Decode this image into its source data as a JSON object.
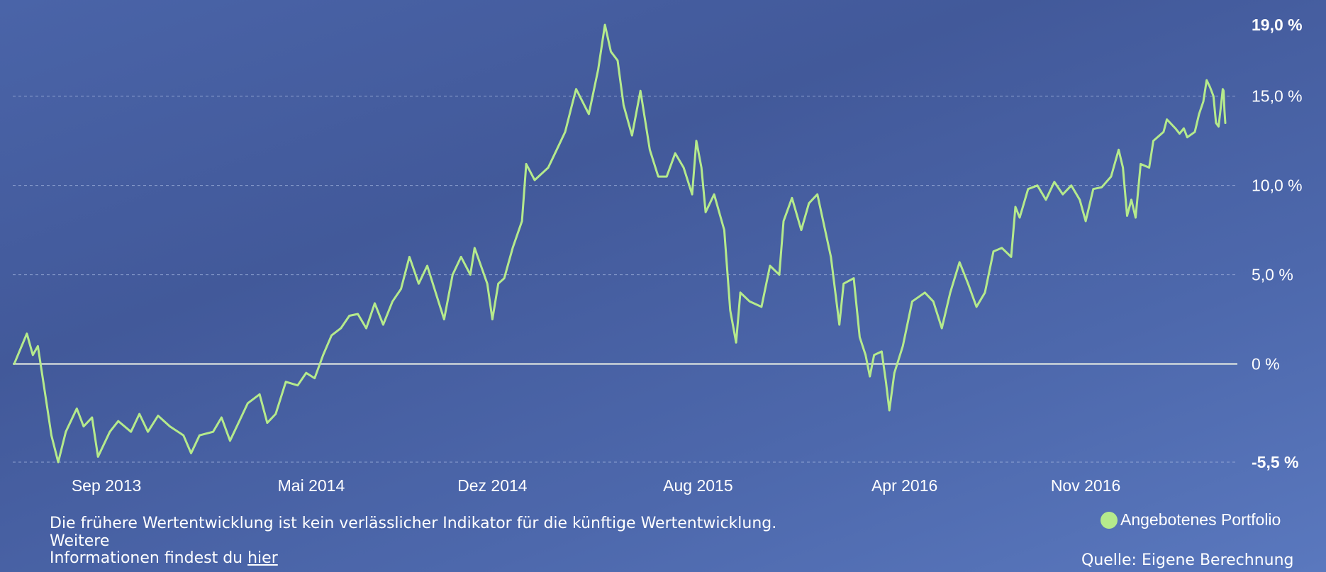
{
  "colors": {
    "line": "#b5ea8c",
    "zero_line": "#f4f7e8",
    "grid": "#9fb1dc",
    "text": "#ffffff"
  },
  "chart_data": {
    "type": "line",
    "title": "",
    "xlabel": "",
    "ylabel": "",
    "x_range": [
      "2013-05-15",
      "2017-04-15"
    ],
    "ylim": [
      -5.5,
      19.0
    ],
    "grid": true,
    "legend_position": "bottom-right",
    "y_ticks": [
      {
        "value": 19.0,
        "label": "19,0 %",
        "bold": true
      },
      {
        "value": 15.0,
        "label": "15,0 %",
        "bold": false
      },
      {
        "value": 10.0,
        "label": "10,0 %",
        "bold": false
      },
      {
        "value": 5.0,
        "label": "5,0 %",
        "bold": false
      },
      {
        "value": 0,
        "label": "0 %",
        "bold": false
      },
      {
        "value": -5.5,
        "label": "-5,5 %",
        "bold": true
      }
    ],
    "x_ticks": [
      {
        "date": "2013-09-01",
        "label": "Sep 2013"
      },
      {
        "date": "2014-05-01",
        "label": "Mai 2014"
      },
      {
        "date": "2014-12-01",
        "label": "Dez 2014"
      },
      {
        "date": "2015-08-01",
        "label": "Aug 2015"
      },
      {
        "date": "2016-04-01",
        "label": "Apr 2016"
      },
      {
        "date": "2016-11-01",
        "label": "Nov 2016"
      }
    ],
    "series": [
      {
        "name": "Angebotenes Portfolio",
        "points": [
          [
            "2013-05-15",
            0.0
          ],
          [
            "2013-05-22",
            0.8
          ],
          [
            "2013-05-30",
            1.7
          ],
          [
            "2013-06-06",
            0.5
          ],
          [
            "2013-06-12",
            1.0
          ],
          [
            "2013-06-20",
            -1.5
          ],
          [
            "2013-06-28",
            -4.0
          ],
          [
            "2013-07-06",
            -5.5
          ],
          [
            "2013-07-15",
            -3.8
          ],
          [
            "2013-07-28",
            -2.5
          ],
          [
            "2013-08-05",
            -3.5
          ],
          [
            "2013-08-15",
            -3.0
          ],
          [
            "2013-08-22",
            -5.2
          ],
          [
            "2013-09-05",
            -3.8
          ],
          [
            "2013-09-15",
            -3.2
          ],
          [
            "2013-09-30",
            -3.8
          ],
          [
            "2013-10-10",
            -2.8
          ],
          [
            "2013-10-20",
            -3.8
          ],
          [
            "2013-11-01",
            -2.9
          ],
          [
            "2013-11-15",
            -3.5
          ],
          [
            "2013-12-01",
            -4.0
          ],
          [
            "2013-12-10",
            -5.0
          ],
          [
            "2013-12-20",
            -4.0
          ],
          [
            "2014-01-05",
            -3.8
          ],
          [
            "2014-01-15",
            -3.0
          ],
          [
            "2014-01-25",
            -4.3
          ],
          [
            "2014-02-05",
            -3.2
          ],
          [
            "2014-02-15",
            -2.2
          ],
          [
            "2014-03-01",
            -1.7
          ],
          [
            "2014-03-10",
            -3.3
          ],
          [
            "2014-03-20",
            -2.8
          ],
          [
            "2014-04-01",
            -1.0
          ],
          [
            "2014-04-15",
            -1.2
          ],
          [
            "2014-04-25",
            -0.5
          ],
          [
            "2014-05-05",
            -0.8
          ],
          [
            "2014-05-15",
            0.5
          ],
          [
            "2014-05-25",
            1.6
          ],
          [
            "2014-06-05",
            2.0
          ],
          [
            "2014-06-15",
            2.7
          ],
          [
            "2014-06-25",
            2.8
          ],
          [
            "2014-07-05",
            2.0
          ],
          [
            "2014-07-15",
            3.4
          ],
          [
            "2014-07-25",
            2.2
          ],
          [
            "2014-08-05",
            3.5
          ],
          [
            "2014-08-15",
            4.2
          ],
          [
            "2014-08-25",
            6.0
          ],
          [
            "2014-09-05",
            4.5
          ],
          [
            "2014-09-15",
            5.5
          ],
          [
            "2014-09-25",
            4.0
          ],
          [
            "2014-10-05",
            2.5
          ],
          [
            "2014-10-15",
            5.0
          ],
          [
            "2014-10-25",
            6.0
          ],
          [
            "2014-11-05",
            5.0
          ],
          [
            "2014-11-10",
            6.5
          ],
          [
            "2014-11-25",
            4.5
          ],
          [
            "2014-12-01",
            2.5
          ],
          [
            "2014-12-08",
            4.5
          ],
          [
            "2014-12-15",
            4.8
          ],
          [
            "2014-12-25",
            6.5
          ],
          [
            "2015-01-05",
            8.0
          ],
          [
            "2015-01-10",
            11.2
          ],
          [
            "2015-01-20",
            10.3
          ],
          [
            "2015-02-05",
            11.0
          ],
          [
            "2015-02-15",
            12.0
          ],
          [
            "2015-02-25",
            13.0
          ],
          [
            "2015-03-05",
            14.5
          ],
          [
            "2015-03-10",
            15.4
          ],
          [
            "2015-03-25",
            14.0
          ],
          [
            "2015-04-05",
            16.5
          ],
          [
            "2015-04-13",
            19.0
          ],
          [
            "2015-04-20",
            17.5
          ],
          [
            "2015-04-28",
            17.0
          ],
          [
            "2015-05-05",
            14.5
          ],
          [
            "2015-05-15",
            12.8
          ],
          [
            "2015-05-25",
            15.3
          ],
          [
            "2015-06-05",
            12.0
          ],
          [
            "2015-06-15",
            10.5
          ],
          [
            "2015-06-25",
            10.5
          ],
          [
            "2015-07-05",
            11.8
          ],
          [
            "2015-07-15",
            11.0
          ],
          [
            "2015-07-25",
            9.5
          ],
          [
            "2015-07-30",
            12.5
          ],
          [
            "2015-08-05",
            11.0
          ],
          [
            "2015-08-10",
            8.5
          ],
          [
            "2015-08-20",
            9.5
          ],
          [
            "2015-09-01",
            7.5
          ],
          [
            "2015-09-08",
            3.0
          ],
          [
            "2015-09-15",
            1.2
          ],
          [
            "2015-09-20",
            4.0
          ],
          [
            "2015-10-01",
            3.5
          ],
          [
            "2015-10-15",
            3.2
          ],
          [
            "2015-10-25",
            5.5
          ],
          [
            "2015-11-05",
            5.0
          ],
          [
            "2015-11-10",
            8.0
          ],
          [
            "2015-11-20",
            9.3
          ],
          [
            "2015-12-01",
            7.5
          ],
          [
            "2015-12-10",
            9.0
          ],
          [
            "2015-12-20",
            9.5
          ],
          [
            "2016-01-05",
            6.0
          ],
          [
            "2016-01-15",
            2.2
          ],
          [
            "2016-01-20",
            4.5
          ],
          [
            "2016-02-01",
            4.8
          ],
          [
            "2016-02-08",
            1.5
          ],
          [
            "2016-02-15",
            0.5
          ],
          [
            "2016-02-20",
            -0.7
          ],
          [
            "2016-02-25",
            0.5
          ],
          [
            "2016-03-05",
            0.7
          ],
          [
            "2016-03-10",
            -1.0
          ],
          [
            "2016-03-14",
            -2.6
          ],
          [
            "2016-03-20",
            -0.5
          ],
          [
            "2016-03-30",
            1.0
          ],
          [
            "2016-04-10",
            3.5
          ],
          [
            "2016-04-25",
            4.0
          ],
          [
            "2016-05-05",
            3.5
          ],
          [
            "2016-05-15",
            2.0
          ],
          [
            "2016-05-25",
            4.0
          ],
          [
            "2016-06-05",
            5.7
          ],
          [
            "2016-06-15",
            4.5
          ],
          [
            "2016-06-25",
            3.2
          ],
          [
            "2016-07-05",
            4.0
          ],
          [
            "2016-07-15",
            6.3
          ],
          [
            "2016-07-25",
            6.5
          ],
          [
            "2016-08-05",
            6.0
          ],
          [
            "2016-08-10",
            8.8
          ],
          [
            "2016-08-15",
            8.2
          ],
          [
            "2016-08-25",
            9.8
          ],
          [
            "2016-09-05",
            10.0
          ],
          [
            "2016-09-15",
            9.2
          ],
          [
            "2016-09-25",
            10.2
          ],
          [
            "2016-10-05",
            9.5
          ],
          [
            "2016-10-15",
            10.0
          ],
          [
            "2016-10-25",
            9.2
          ],
          [
            "2016-11-01",
            8.0
          ],
          [
            "2016-11-10",
            9.8
          ],
          [
            "2016-11-20",
            9.9
          ],
          [
            "2016-12-01",
            10.5
          ],
          [
            "2016-12-10",
            12.0
          ],
          [
            "2016-12-15",
            11.0
          ],
          [
            "2016-12-20",
            8.3
          ],
          [
            "2016-12-25",
            9.2
          ],
          [
            "2016-12-30",
            8.2
          ],
          [
            "2017-01-05",
            11.2
          ],
          [
            "2017-01-15",
            11.0
          ],
          [
            "2017-01-20",
            12.5
          ],
          [
            "2017-02-01",
            13.0
          ],
          [
            "2017-02-05",
            13.7
          ],
          [
            "2017-02-15",
            13.2
          ],
          [
            "2017-02-20",
            12.9
          ],
          [
            "2017-02-25",
            13.2
          ],
          [
            "2017-03-01",
            12.7
          ],
          [
            "2017-03-10",
            13.0
          ],
          [
            "2017-03-15",
            14.0
          ],
          [
            "2017-03-20",
            14.7
          ],
          [
            "2017-03-24",
            15.9
          ],
          [
            "2017-03-28",
            15.5
          ],
          [
            "2017-04-01",
            15.0
          ],
          [
            "2017-04-04",
            13.5
          ],
          [
            "2017-04-07",
            13.3
          ],
          [
            "2017-04-10",
            14.5
          ],
          [
            "2017-04-12",
            15.4
          ],
          [
            "2017-04-13",
            15.3
          ],
          [
            "2017-04-14",
            14.2
          ],
          [
            "2017-04-15",
            13.5
          ]
        ]
      }
    ]
  },
  "legend": {
    "label": "Angebotenes Portfolio"
  },
  "footer": {
    "disclaimer_line1": "Die frühere Wertentwicklung ist kein verlässlicher Indikator für die künftige Wertentwicklung. Weitere",
    "disclaimer_line2_prefix": "Informationen findest du ",
    "link_text": "hier",
    "source": "Quelle: Eigene Berechnung"
  }
}
